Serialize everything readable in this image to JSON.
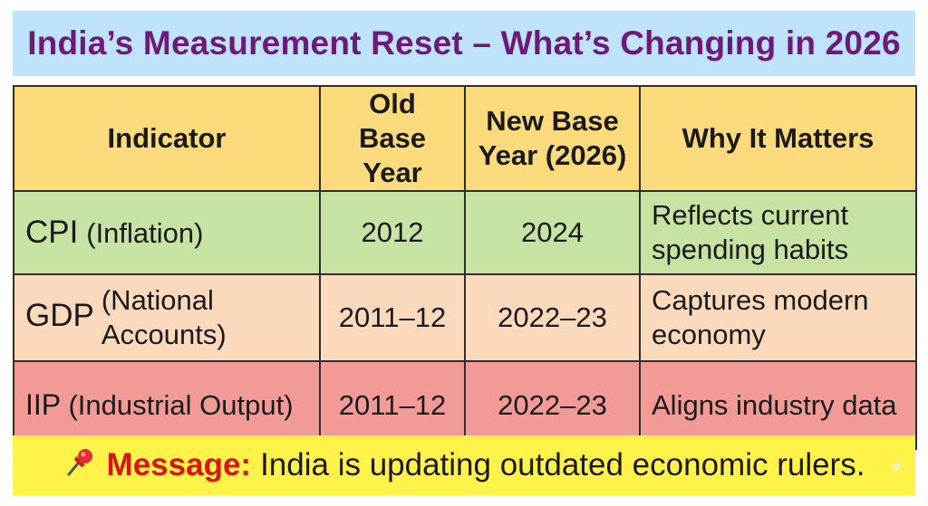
{
  "title": "India’s Measurement Reset – What’s Changing in 2026",
  "table": {
    "headers": [
      "Indicator",
      "Old Base Year",
      "New Base Year (2026)",
      "Why It Matters"
    ],
    "rows": [
      {
        "abbr": "CPI",
        "name": "(Inflation)",
        "old": "2012",
        "new": "2024",
        "why": "Reflects current spending habits"
      },
      {
        "abbr": "GDP",
        "name": "(National Accounts)",
        "old": "2011–12",
        "new": "2022–23",
        "why": "Captures modern economy"
      },
      {
        "abbr": "IIP",
        "name": "(Industrial Output)",
        "old": "2011–12",
        "new": "2022–23",
        "why": "Aligns industry data"
      }
    ]
  },
  "footer": {
    "icon": "pushpin-icon",
    "label": "Message:",
    "text": "India is updating outdated economic rulers."
  },
  "colors": {
    "title_bg": "#bfe3fb",
    "title_text": "#6d1a7a",
    "header_bg": "#fbdb7c",
    "cpi_bg": "#c6e3a3",
    "gdp_bg": "#fbd9bd",
    "iip_bg": "#f29a95",
    "footer_bg": "#fff34a",
    "footer_label": "#d81414"
  }
}
